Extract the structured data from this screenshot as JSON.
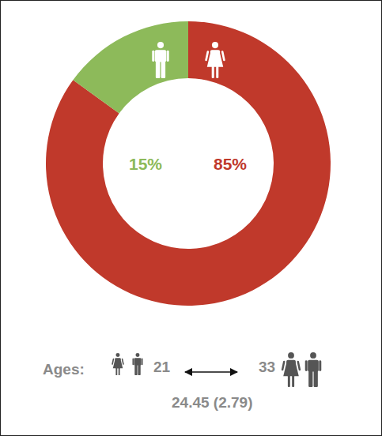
{
  "chart_data": {
    "type": "donut",
    "values": [
      85,
      15
    ],
    "value_labels": [
      "85%",
      "15%"
    ],
    "colors": [
      "#c0392b",
      "#8dba5a"
    ],
    "data_labels": true,
    "annotations": [
      "Ages:",
      "21",
      "33",
      "24.45 (2.79)"
    ]
  }
}
